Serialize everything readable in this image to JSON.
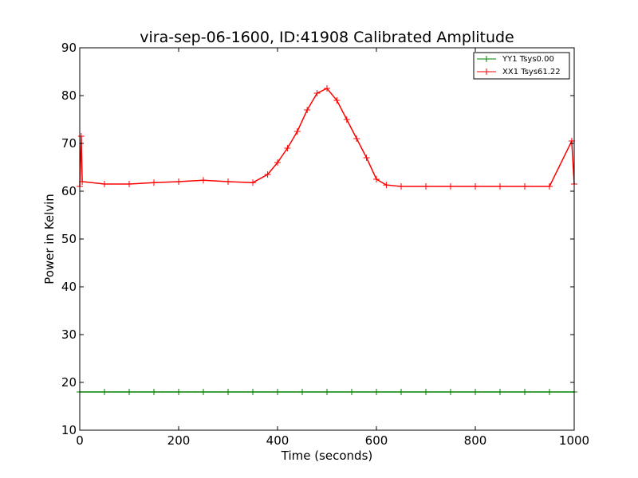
{
  "chart_data": {
    "type": "line",
    "title": "vira-sep-06-1600, ID:41908 Calibrated Amplitude",
    "xlabel": "Time (seconds)",
    "ylabel": "Power in Kelvin",
    "xlim": [
      0,
      1000
    ],
    "ylim": [
      10,
      90
    ],
    "xticks": [
      "0",
      "200",
      "400",
      "600",
      "800",
      "1000"
    ],
    "yticks": [
      "10",
      "20",
      "30",
      "40",
      "50",
      "60",
      "70",
      "80",
      "90"
    ],
    "grid": false,
    "legend_position": "top-right",
    "colors": {
      "yy1": "#008000",
      "xx1": "#ff0000"
    },
    "series": [
      {
        "name": "YY1 Tsys0.00",
        "color": "#008000",
        "marker": "plus",
        "x": [
          0,
          50,
          100,
          150,
          200,
          250,
          300,
          350,
          400,
          450,
          500,
          550,
          600,
          650,
          700,
          750,
          800,
          850,
          900,
          950,
          1000
        ],
        "y": [
          18,
          18,
          18,
          18,
          18,
          18,
          18,
          18,
          18,
          18,
          18,
          18,
          18,
          18,
          18,
          18,
          18,
          18,
          18,
          18,
          18
        ]
      },
      {
        "name": "XX1 Tsys61.22",
        "color": "#ff0000",
        "marker": "plus",
        "x": [
          0,
          3,
          5,
          50,
          100,
          150,
          200,
          250,
          300,
          350,
          380,
          400,
          420,
          440,
          460,
          480,
          500,
          520,
          540,
          560,
          580,
          600,
          620,
          650,
          700,
          750,
          800,
          850,
          900,
          950,
          995,
          1000
        ],
        "y": [
          61,
          71.5,
          62,
          61.5,
          61.5,
          61.8,
          62,
          62.3,
          62,
          61.8,
          63.5,
          66,
          69,
          72.5,
          77,
          80.5,
          81.5,
          79,
          75,
          71,
          67,
          62.5,
          61.3,
          61,
          61,
          61,
          61,
          61,
          61,
          61,
          70.5,
          61.5
        ]
      }
    ]
  }
}
